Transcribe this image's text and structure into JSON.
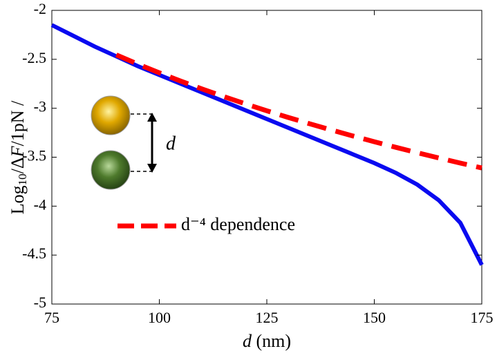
{
  "chart_data": {
    "type": "line",
    "xlabel_parts": [
      "d",
      " (nm)"
    ],
    "ylabel_parts": [
      "Log",
      "10",
      "/Δ",
      "F",
      "/1pN /"
    ],
    "x": [
      75,
      80,
      85,
      90,
      95,
      100,
      105,
      110,
      115,
      120,
      125,
      130,
      135,
      140,
      145,
      150,
      155,
      160,
      165,
      170,
      175
    ],
    "series": [
      {
        "color": "#0a0af0",
        "values": [
          -2.15,
          -2.26,
          -2.37,
          -2.47,
          -2.57,
          -2.66,
          -2.75,
          -2.84,
          -2.93,
          -3.02,
          -3.11,
          -3.2,
          -3.29,
          -3.38,
          -3.47,
          -3.56,
          -3.66,
          -3.78,
          -3.94,
          -4.17,
          -4.6
        ]
      },
      {
        "name": "d⁻⁴ dependence",
        "color": "#ff0000",
        "dashed": true,
        "values": [
          null,
          null,
          null,
          -2.455,
          -2.549,
          -2.638,
          -2.723,
          -2.804,
          -2.881,
          -2.955,
          -3.026,
          -3.094,
          -3.159,
          -3.222,
          -3.283,
          -3.342,
          -3.399,
          -3.454,
          -3.508,
          -3.56,
          -3.61
        ]
      }
    ],
    "annotation": "d",
    "xlim": [
      75,
      175
    ],
    "xticks": [
      75,
      100,
      125,
      150,
      175
    ],
    "ylim": [
      -5,
      -2
    ],
    "yticks": [
      -5,
      -4.5,
      -4,
      -3.5,
      -3,
      -2.5,
      -2
    ],
    "grid": false
  }
}
